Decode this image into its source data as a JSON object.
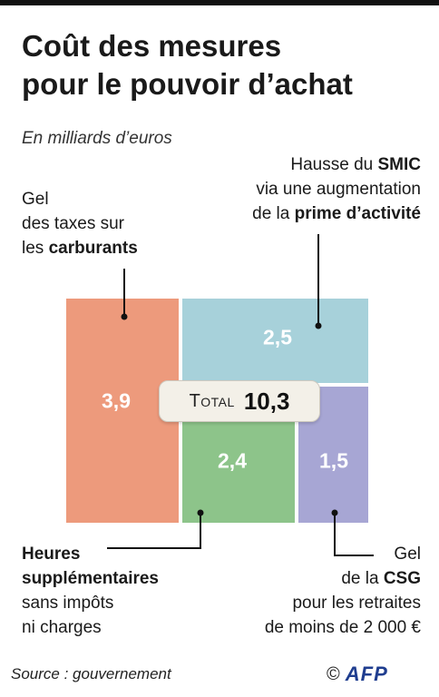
{
  "title_line1": "Coût des mesures",
  "title_line2": "pour le pouvoir d’achat",
  "subtitle": "En milliards d’euros",
  "labels": {
    "carburants": [
      "Gel",
      "des taxes sur",
      "les ",
      "carburants"
    ],
    "smic": [
      "Hausse du ",
      "SMIC",
      "via une augmentation",
      "de la ",
      "prime d’activité"
    ],
    "heures": [
      "Heures",
      "supplémentaires",
      "sans impôts",
      "ni charges"
    ],
    "csg": [
      "Gel",
      "de la ",
      "CSG",
      "pour les retraites",
      "de moins de 2 000 €"
    ]
  },
  "total": {
    "label": "Total",
    "value": "10,3"
  },
  "source": "Source : gouvernement",
  "credit": {
    "copyright": "©",
    "agency": "AFP"
  },
  "colors": {
    "carburants": "#ed9a7c",
    "smic": "#a7d1da",
    "heures": "#8dc48a",
    "csg": "#a7a6d4"
  },
  "chart_data": {
    "type": "treemap",
    "unit": "milliards d’euros",
    "total": 10.3,
    "items": [
      {
        "name": "Gel des taxes sur les carburants",
        "value": 3.9,
        "label": "3,9"
      },
      {
        "name": "Hausse du SMIC via une augmentation de la prime d’activité",
        "value": 2.5,
        "label": "2,5"
      },
      {
        "name": "Heures supplémentaires sans impôts ni charges",
        "value": 2.4,
        "label": "2,4"
      },
      {
        "name": "Gel de la CSG pour les retraites de moins de 2 000 €",
        "value": 1.5,
        "label": "1,5"
      }
    ]
  }
}
